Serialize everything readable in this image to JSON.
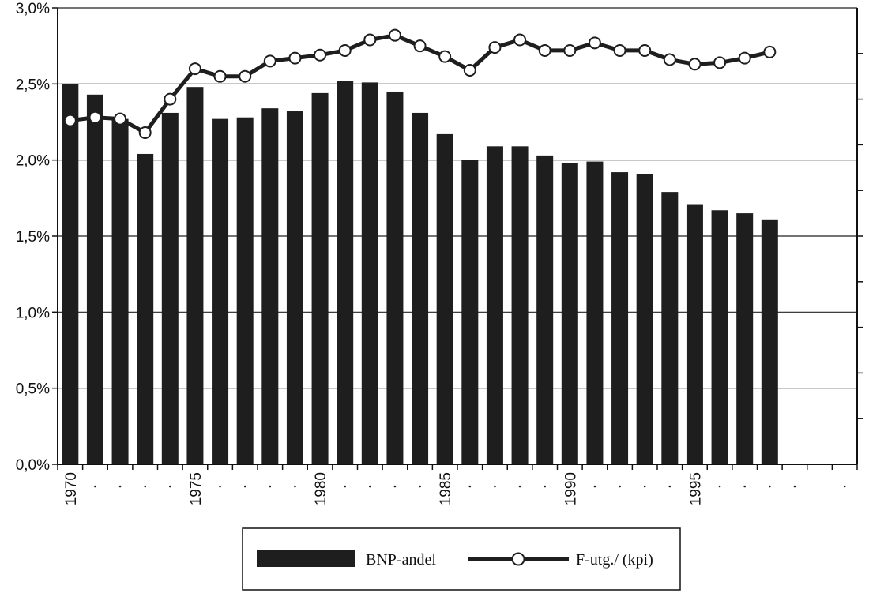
{
  "chart_data": {
    "type": "bar",
    "title": "",
    "xlabel": "",
    "ylabel": "",
    "ylim": [
      0,
      3.0
    ],
    "grid": true,
    "legend_position": "bottom",
    "y_tick_labels": [
      "0,0%",
      "0,5%",
      "1,0%",
      "1,5%",
      "2,0%",
      "2,5%",
      "3,0%"
    ],
    "x_tick_labels": [
      "1970",
      "1975",
      "1980",
      "1985",
      "1990",
      "1995"
    ],
    "categories": [
      1970,
      1971,
      1972,
      1973,
      1974,
      1975,
      1976,
      1977,
      1978,
      1979,
      1980,
      1981,
      1982,
      1983,
      1984,
      1985,
      1986,
      1987,
      1988,
      1989,
      1990,
      1991,
      1992,
      1993,
      1994,
      1995,
      1996,
      1997,
      1998
    ],
    "series": [
      {
        "name": "BNP-andel",
        "type": "bar",
        "color": "#1e1e1e",
        "values": [
          2.5,
          2.43,
          2.27,
          2.04,
          2.31,
          2.48,
          2.27,
          2.28,
          2.34,
          2.32,
          2.44,
          2.52,
          2.51,
          2.45,
          2.31,
          2.17,
          2.0,
          2.09,
          2.09,
          2.03,
          1.98,
          1.99,
          1.92,
          1.91,
          1.79,
          1.71,
          1.67,
          1.65,
          1.61
        ]
      },
      {
        "name": "F-utg./ (kpi)",
        "type": "line",
        "color": "#1e1e1e",
        "marker": "open-circle",
        "axis": "secondary-unlabeled",
        "values": [
          2.26,
          2.28,
          2.27,
          2.18,
          2.4,
          2.6,
          2.55,
          2.55,
          2.65,
          2.67,
          2.69,
          2.72,
          2.79,
          2.82,
          2.75,
          2.68,
          2.59,
          2.74,
          2.79,
          2.72,
          2.72,
          2.77,
          2.72,
          2.72,
          2.66,
          2.63,
          2.64,
          2.67,
          2.71
        ]
      }
    ]
  }
}
